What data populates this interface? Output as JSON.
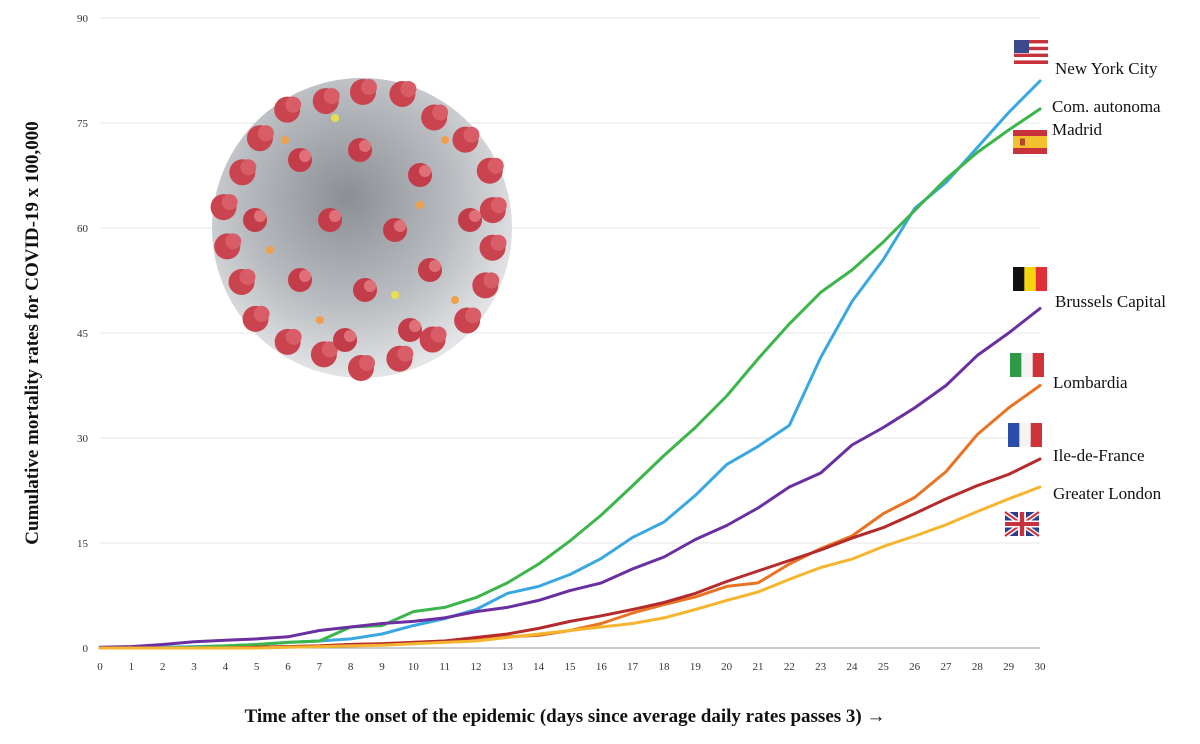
{
  "chart_data": {
    "type": "line",
    "title": "",
    "xlabel": "Time after the onset of the epidemic (days since average daily rates passes 3) →",
    "ylabel": "Cumulative mortality rates for COVID-19  x 100,000",
    "xlim": [
      0,
      30
    ],
    "ylim": [
      0,
      90
    ],
    "x_ticks": [
      "0",
      "1",
      "2",
      "3",
      "4",
      "5",
      "6",
      "7",
      "8",
      "9",
      "10",
      "11",
      "12",
      "13",
      "14",
      "15",
      "16",
      "17",
      "18",
      "19",
      "20",
      "21",
      "22",
      "23",
      "24",
      "25",
      "26",
      "27",
      "28",
      "29",
      "30"
    ],
    "y_ticks": [
      "0",
      "15",
      "30",
      "45",
      "60",
      "75",
      "90"
    ],
    "grid": "horizontal",
    "x": [
      0,
      1,
      2,
      3,
      4,
      5,
      6,
      7,
      8,
      9,
      10,
      11,
      12,
      13,
      14,
      15,
      16,
      17,
      18,
      19,
      20,
      21,
      22,
      23,
      24,
      25,
      26,
      27,
      28,
      29,
      30
    ],
    "series": [
      {
        "name": "New York City",
        "flag": "usa-flag",
        "color": "#3aa8e0",
        "values": [
          0,
          0,
          0.1,
          0.2,
          0.3,
          0.5,
          0.8,
          1.0,
          1.3,
          2.0,
          3.2,
          4.2,
          5.5,
          7.8,
          8.8,
          10.5,
          12.8,
          15.8,
          18.0,
          21.8,
          26.2,
          28.8,
          31.8,
          41.5,
          49.5,
          55.5,
          62.8,
          66.5,
          71.5,
          76.5,
          81.0
        ]
      },
      {
        "name": "Com. autonoma Madrid",
        "label_lines": [
          "Com. autonoma",
          "Madrid"
        ],
        "flag": "spain-flag",
        "color": "#3cb54a",
        "values": [
          0,
          0,
          0,
          0.1,
          0.3,
          0.5,
          0.8,
          1.0,
          3.0,
          3.2,
          5.2,
          5.8,
          7.2,
          9.3,
          12.0,
          15.3,
          19.0,
          23.2,
          27.5,
          31.5,
          36.0,
          41.3,
          46.3,
          50.8,
          54.0,
          58.0,
          62.5,
          67.0,
          70.8,
          74.0,
          77.0
        ]
      },
      {
        "name": "Brussels Capital",
        "flag": "belgium-flag",
        "color": "#6a2fa0",
        "values": [
          0.1,
          0.2,
          0.5,
          0.9,
          1.1,
          1.3,
          1.6,
          2.5,
          3.0,
          3.5,
          3.8,
          4.3,
          5.2,
          5.8,
          6.8,
          8.2,
          9.3,
          11.3,
          13.0,
          15.5,
          17.5,
          20.0,
          23.0,
          25.0,
          29.0,
          31.5,
          34.3,
          37.5,
          41.8,
          45.0,
          48.5
        ]
      },
      {
        "name": "Lombardia",
        "flag": "italy-flag",
        "color": "#e87322",
        "values": [
          0,
          0,
          0,
          0,
          0,
          0.1,
          0.2,
          0.3,
          0.5,
          0.6,
          0.8,
          1.0,
          1.2,
          1.6,
          1.8,
          2.5,
          3.5,
          5.0,
          6.2,
          7.3,
          8.8,
          9.3,
          12.0,
          14.2,
          16.0,
          19.2,
          21.5,
          25.2,
          30.5,
          34.3,
          37.5
        ]
      },
      {
        "name": "Ile-de-France",
        "flag": "france-flag",
        "color": "#b52a2a",
        "values": [
          0,
          0,
          0,
          0,
          0,
          0.1,
          0.2,
          0.3,
          0.5,
          0.6,
          0.8,
          1.0,
          1.5,
          2.0,
          2.8,
          3.8,
          4.6,
          5.5,
          6.5,
          7.8,
          9.5,
          11.0,
          12.5,
          14.0,
          15.7,
          17.2,
          19.2,
          21.3,
          23.2,
          24.8,
          27.0
        ]
      },
      {
        "name": "Greater London",
        "flag": "uk-flag",
        "color": "#f6b52e",
        "values": [
          0,
          0,
          0,
          0,
          0,
          0,
          0.1,
          0.2,
          0.3,
          0.4,
          0.6,
          0.8,
          1.0,
          1.5,
          2.0,
          2.5,
          3.0,
          3.5,
          4.3,
          5.5,
          6.8,
          8.0,
          9.8,
          11.5,
          12.7,
          14.5,
          16.0,
          17.6,
          19.5,
          21.3,
          23.0
        ]
      }
    ]
  }
}
